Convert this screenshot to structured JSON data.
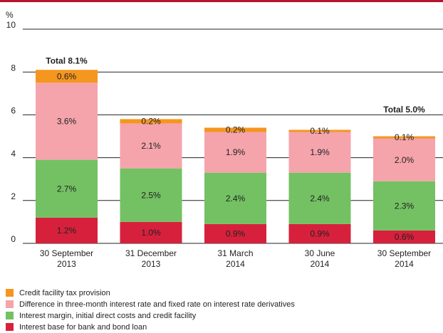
{
  "chart_data": {
    "type": "stacked_bar",
    "y_label": "%",
    "categories": [
      [
        "30 September",
        "2013"
      ],
      [
        "31 December",
        "2013"
      ],
      [
        "31 March",
        "2014"
      ],
      [
        "30 June",
        "2014"
      ],
      [
        "30 September",
        "2014"
      ]
    ],
    "series": [
      {
        "name": "Interest base for bank and bond loan",
        "color": "#d7213c",
        "values": [
          1.2,
          1.0,
          0.9,
          0.9,
          0.6
        ],
        "value_labels": [
          "1.2%",
          "1.0%",
          "0.9%",
          "0.9%",
          "0.6%"
        ]
      },
      {
        "name": "Interest margin, initial direct costs and credit facility",
        "color": "#73c163",
        "values": [
          2.7,
          2.5,
          2.4,
          2.4,
          2.3
        ],
        "value_labels": [
          "2.7%",
          "2.5%",
          "2.4%",
          "2.4%",
          "2.3%"
        ]
      },
      {
        "name": "Difference in three-month interest rate and fixed rate on interest rate derivatives",
        "color": "#f5a4ac",
        "values": [
          3.6,
          2.1,
          1.9,
          1.9,
          2.0
        ],
        "value_labels": [
          "3.6%",
          "2.1%",
          "1.9%",
          "1.9%",
          "2.0%"
        ]
      },
      {
        "name": "Credit facility tax provision",
        "color": "#f5961e",
        "values": [
          0.6,
          0.2,
          0.2,
          0.1,
          0.1
        ],
        "value_labels": [
          "0.6%",
          "0.2%",
          "0.2%",
          "0.1%",
          "0.1%"
        ]
      }
    ],
    "annotations": [
      "Total 8.1%",
      "Total 5.0%"
    ],
    "ylim": [
      0,
      10
    ],
    "yticks": [
      0,
      2,
      4,
      6,
      8,
      10
    ],
    "grid": true
  }
}
